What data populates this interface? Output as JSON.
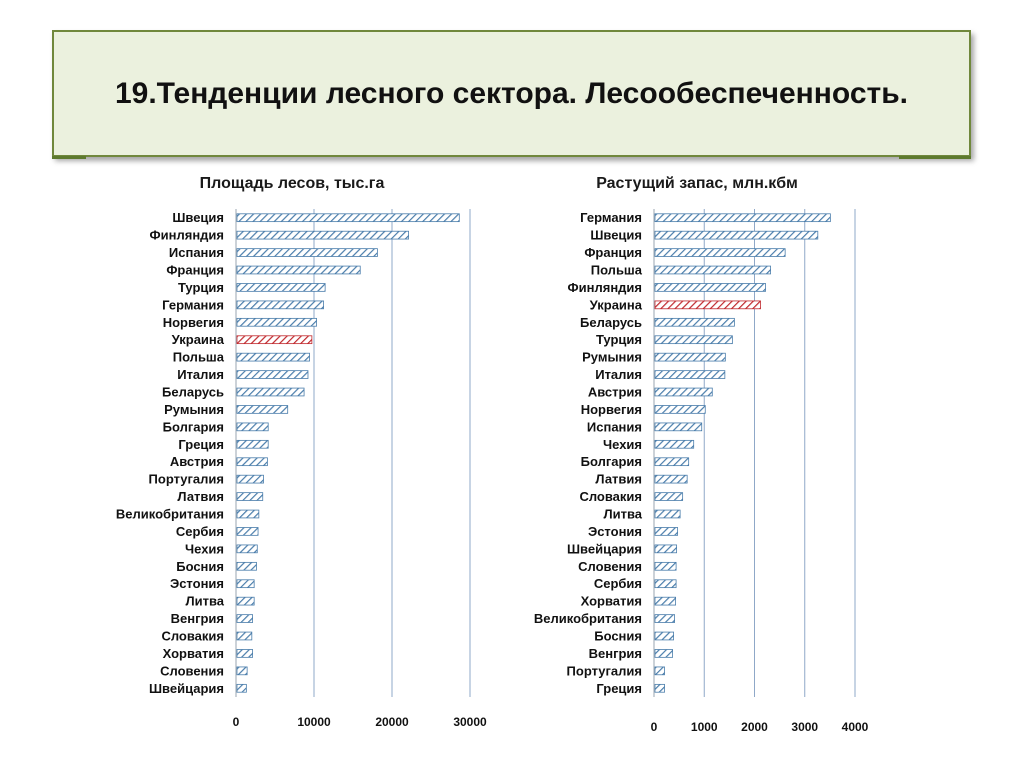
{
  "slide": {
    "title": "19.Тенденции лесного сектора. Лесообеспеченность."
  },
  "colors": {
    "title_bg": "#ebf1de",
    "title_border": "#70883c",
    "bar_normal": "#4a7dab",
    "bar_highlight": "#c0282d",
    "gridline": "#8fa8c8"
  },
  "chart_data": [
    {
      "type": "bar",
      "orientation": "horizontal",
      "title": "Площадь лесов, тыс.га",
      "categories": [
        "Швеция",
        "Финляндия",
        "Испания",
        "Франция",
        "Турция",
        "Германия",
        "Норвегия",
        "Украина",
        "Польша",
        "Италия",
        "Беларусь",
        "Румыния",
        "Болгария",
        "Греция",
        "Австрия",
        "Португалия",
        "Латвия",
        "Великобритания",
        "Сербия",
        "Чехия",
        "Босния",
        "Эстония",
        "Литва",
        "Венгрия",
        "Словакия",
        "Хорватия",
        "Словения",
        "Швейцария"
      ],
      "values": [
        28500,
        22000,
        18000,
        15800,
        11300,
        11100,
        10200,
        9600,
        9300,
        9100,
        8600,
        6500,
        4000,
        4000,
        3900,
        3400,
        3300,
        2800,
        2700,
        2600,
        2500,
        2200,
        2200,
        2000,
        1900,
        2000,
        1300,
        1200
      ],
      "highlight": "Украина",
      "xlim": [
        0,
        30000
      ],
      "xticks": [
        0,
        10000,
        20000,
        30000
      ],
      "grid": true,
      "legend": "none"
    },
    {
      "type": "bar",
      "orientation": "horizontal",
      "title": "Растущий запас, млн.кбм",
      "categories": [
        "Германия",
        "Швеция",
        "Франция",
        "Польша",
        "Финляндия",
        "Украина",
        "Беларусь",
        "Турция",
        "Румыния",
        "Италия",
        "Австрия",
        "Норвегия",
        "Испания",
        "Чехия",
        "Болгария",
        "Латвия",
        "Словакия",
        "Литва",
        "Эстония",
        "Швейцария",
        "Словения",
        "Сербия",
        "Хорватия",
        "Великобритания",
        "Босния",
        "Венгрия",
        "Португалия",
        "Греция"
      ],
      "values": [
        3490,
        3240,
        2590,
        2300,
        2200,
        2100,
        1580,
        1540,
        1400,
        1390,
        1140,
        1000,
        930,
        770,
        670,
        640,
        550,
        500,
        450,
        430,
        420,
        420,
        410,
        390,
        370,
        350,
        190,
        190
      ],
      "highlight": "Украина",
      "xlim": [
        0,
        4000
      ],
      "xticks": [
        0,
        1000,
        2000,
        3000,
        4000
      ],
      "grid": true,
      "legend": "none"
    }
  ]
}
